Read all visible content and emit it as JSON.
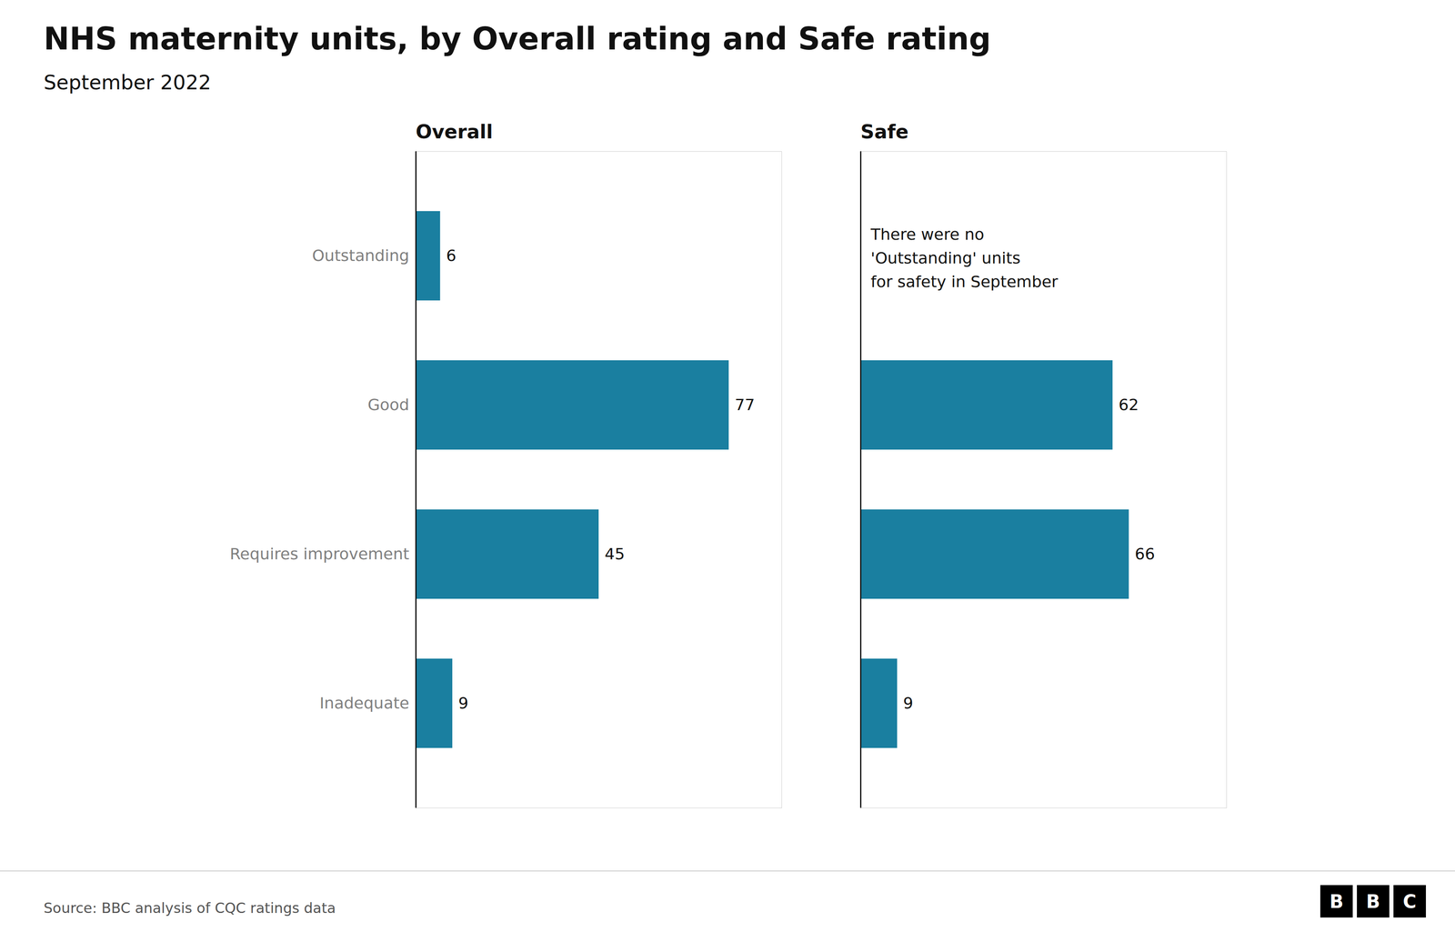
{
  "title": "NHS maternity units, by Overall rating and Safe rating",
  "subtitle": "September 2022",
  "source": "Source: BBC analysis of CQC ratings data",
  "logo": [
    "B",
    "B",
    "C"
  ],
  "chart_data": [
    {
      "type": "bar",
      "orientation": "horizontal",
      "title": "Overall",
      "categories": [
        "Outstanding",
        "Good",
        "Requires improvement",
        "Inadequate"
      ],
      "values": [
        6,
        77,
        45,
        9
      ],
      "color": "#1a7fa0",
      "xlim": [
        0,
        90
      ],
      "xticks": [],
      "data_labels": true,
      "tick_labels": "y"
    },
    {
      "type": "bar",
      "orientation": "horizontal",
      "title": "Safe",
      "categories": [
        "Outstanding",
        "Good",
        "Requires improvement",
        "Inadequate"
      ],
      "values": [
        0,
        62,
        66,
        9
      ],
      "value_labels": [
        null,
        "62",
        "66",
        "9"
      ],
      "color": "#1a7fa0",
      "xlim": [
        0,
        90
      ],
      "xticks": [],
      "data_labels": true,
      "tick_labels": false,
      "annotations": [
        {
          "text": "There were no\n'Outstanding' units\nfor safety in September",
          "category": "Outstanding"
        }
      ]
    }
  ]
}
